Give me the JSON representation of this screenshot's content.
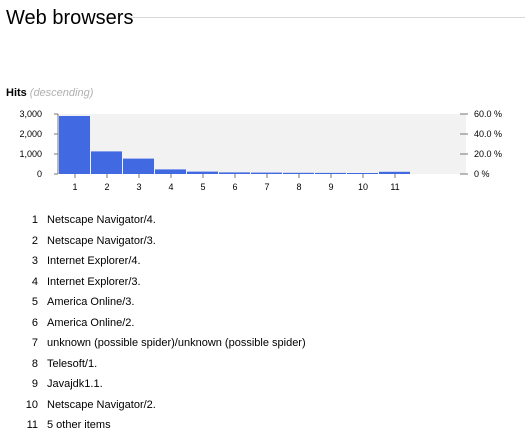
{
  "header": {
    "title": "Web browsers"
  },
  "chart_label": {
    "title": "Hits",
    "subtitle": "(descending)"
  },
  "chart_data": {
    "type": "bar",
    "categories": [
      "1",
      "2",
      "3",
      "4",
      "5",
      "6",
      "7",
      "8",
      "9",
      "10",
      "11"
    ],
    "values": [
      2900,
      1130,
      770,
      230,
      120,
      80,
      70,
      60,
      55,
      50,
      110
    ],
    "ylim": [
      0,
      3000
    ],
    "yticks": [
      "0",
      "1,000",
      "2,000",
      "3,000"
    ],
    "y2ticks": [
      "0 %",
      "20.0 %",
      "40.0 %",
      "60.0 %"
    ],
    "bar_color": "#4169e1",
    "plot_background": "#f2f2f2",
    "grid": false
  },
  "items": [
    {
      "num": "1",
      "label": "Netscape Navigator/4."
    },
    {
      "num": "2",
      "label": "Netscape Navigator/3."
    },
    {
      "num": "3",
      "label": "Internet Explorer/4."
    },
    {
      "num": "4",
      "label": "Internet Explorer/3."
    },
    {
      "num": "5",
      "label": "America Online/3."
    },
    {
      "num": "6",
      "label": "America Online/2."
    },
    {
      "num": "7",
      "label": "unknown (possible spider)/unknown (possible spider)"
    },
    {
      "num": "8",
      "label": "Telesoft/1."
    },
    {
      "num": "9",
      "label": "Javajdk1.1."
    },
    {
      "num": "10",
      "label": "Netscape Navigator/2."
    },
    {
      "num": "11",
      "label": "5 other items"
    }
  ]
}
